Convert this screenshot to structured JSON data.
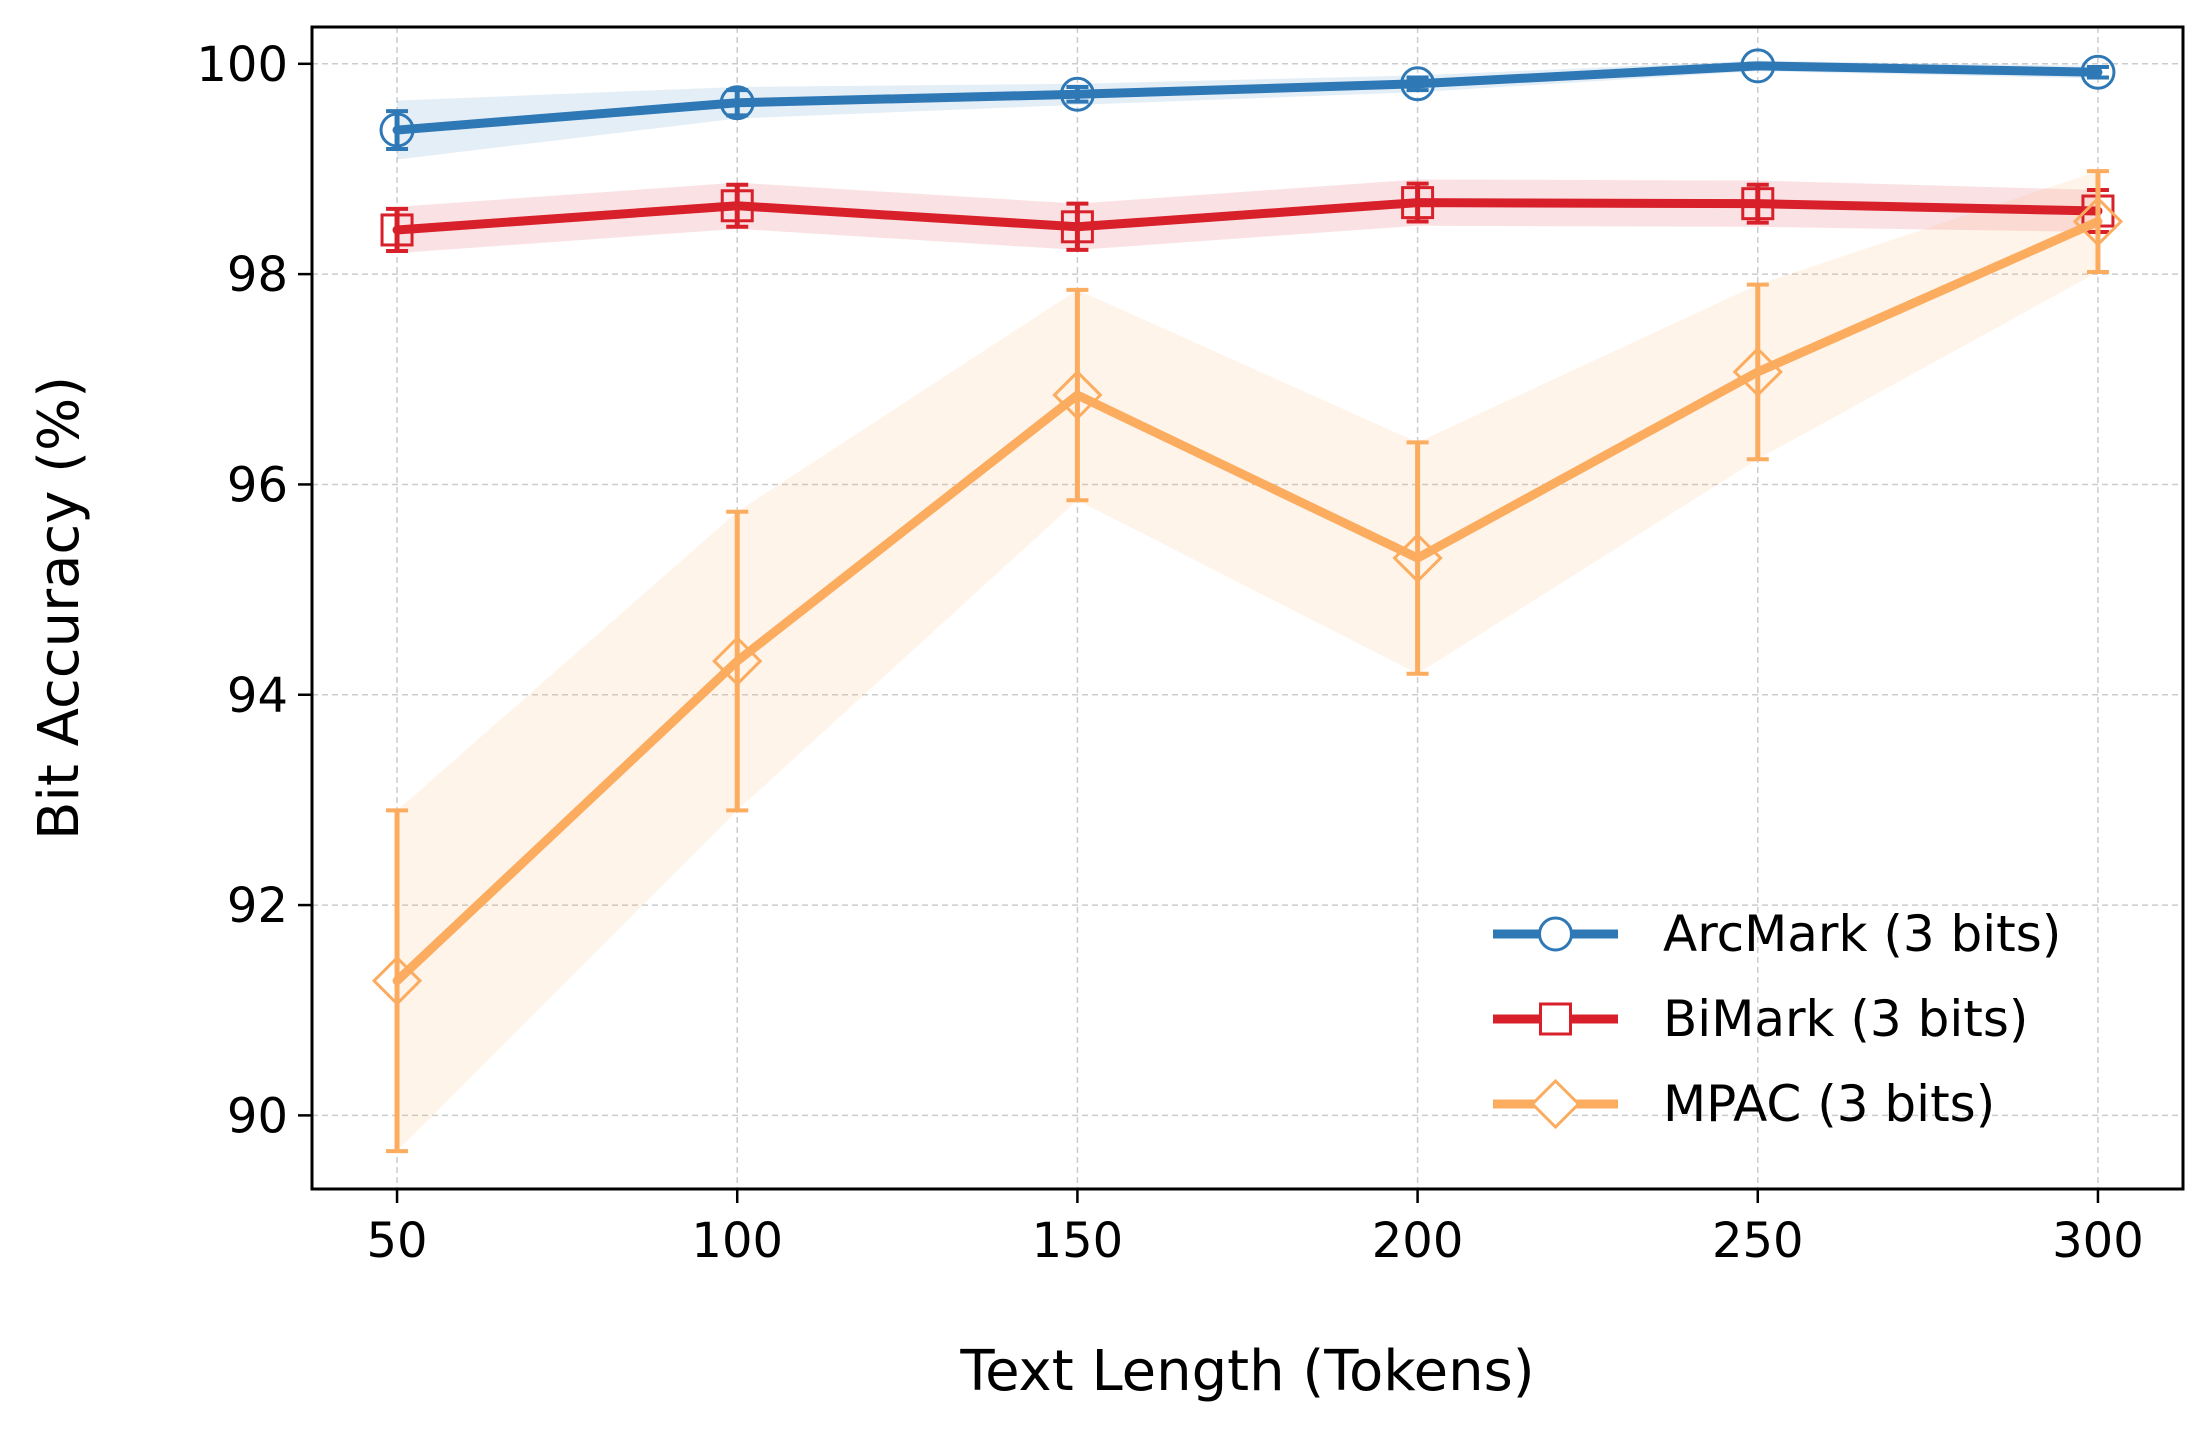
{
  "chart_data": {
    "type": "line",
    "title": "",
    "xlabel": "Text Length (Tokens)",
    "ylabel": "Bit Accuracy (%)",
    "x": [
      50,
      100,
      150,
      200,
      250,
      300
    ],
    "xlim": [
      37.5,
      312.5
    ],
    "ylim": [
      89.3,
      100.35
    ],
    "xticks": [
      50,
      100,
      150,
      200,
      250,
      300
    ],
    "yticks": [
      90,
      92,
      94,
      96,
      98,
      100
    ],
    "grid": true,
    "legend_position": "lower-right",
    "series": [
      {
        "name": "ArcMark (3 bits)",
        "color": "#2f78b6",
        "marker": "circle",
        "values": [
          99.37,
          99.63,
          99.71,
          99.81,
          99.98,
          99.92
        ],
        "error": [
          0.18,
          0.12,
          0.07,
          0.06,
          0.02,
          0.05
        ],
        "band": [
          0.28,
          0.15,
          0.1,
          0.08,
          0.05,
          0.06
        ]
      },
      {
        "name": "BiMark (3 bits)",
        "color": "#d8202b",
        "marker": "square",
        "values": [
          98.42,
          98.65,
          98.45,
          98.68,
          98.67,
          98.6
        ],
        "error": [
          0.2,
          0.2,
          0.22,
          0.18,
          0.18,
          0.2
        ],
        "band": [
          0.22,
          0.22,
          0.22,
          0.22,
          0.22,
          0.2
        ]
      },
      {
        "name": "MPAC (3 bits)",
        "color": "#fcac5f",
        "marker": "diamond",
        "values": [
          91.28,
          94.32,
          96.85,
          95.3,
          97.07,
          98.5
        ],
        "error": [
          1.62,
          1.42,
          1.0,
          1.1,
          0.83,
          0.48
        ],
        "band": [
          1.62,
          1.42,
          1.0,
          1.1,
          0.83,
          0.48
        ]
      }
    ]
  }
}
